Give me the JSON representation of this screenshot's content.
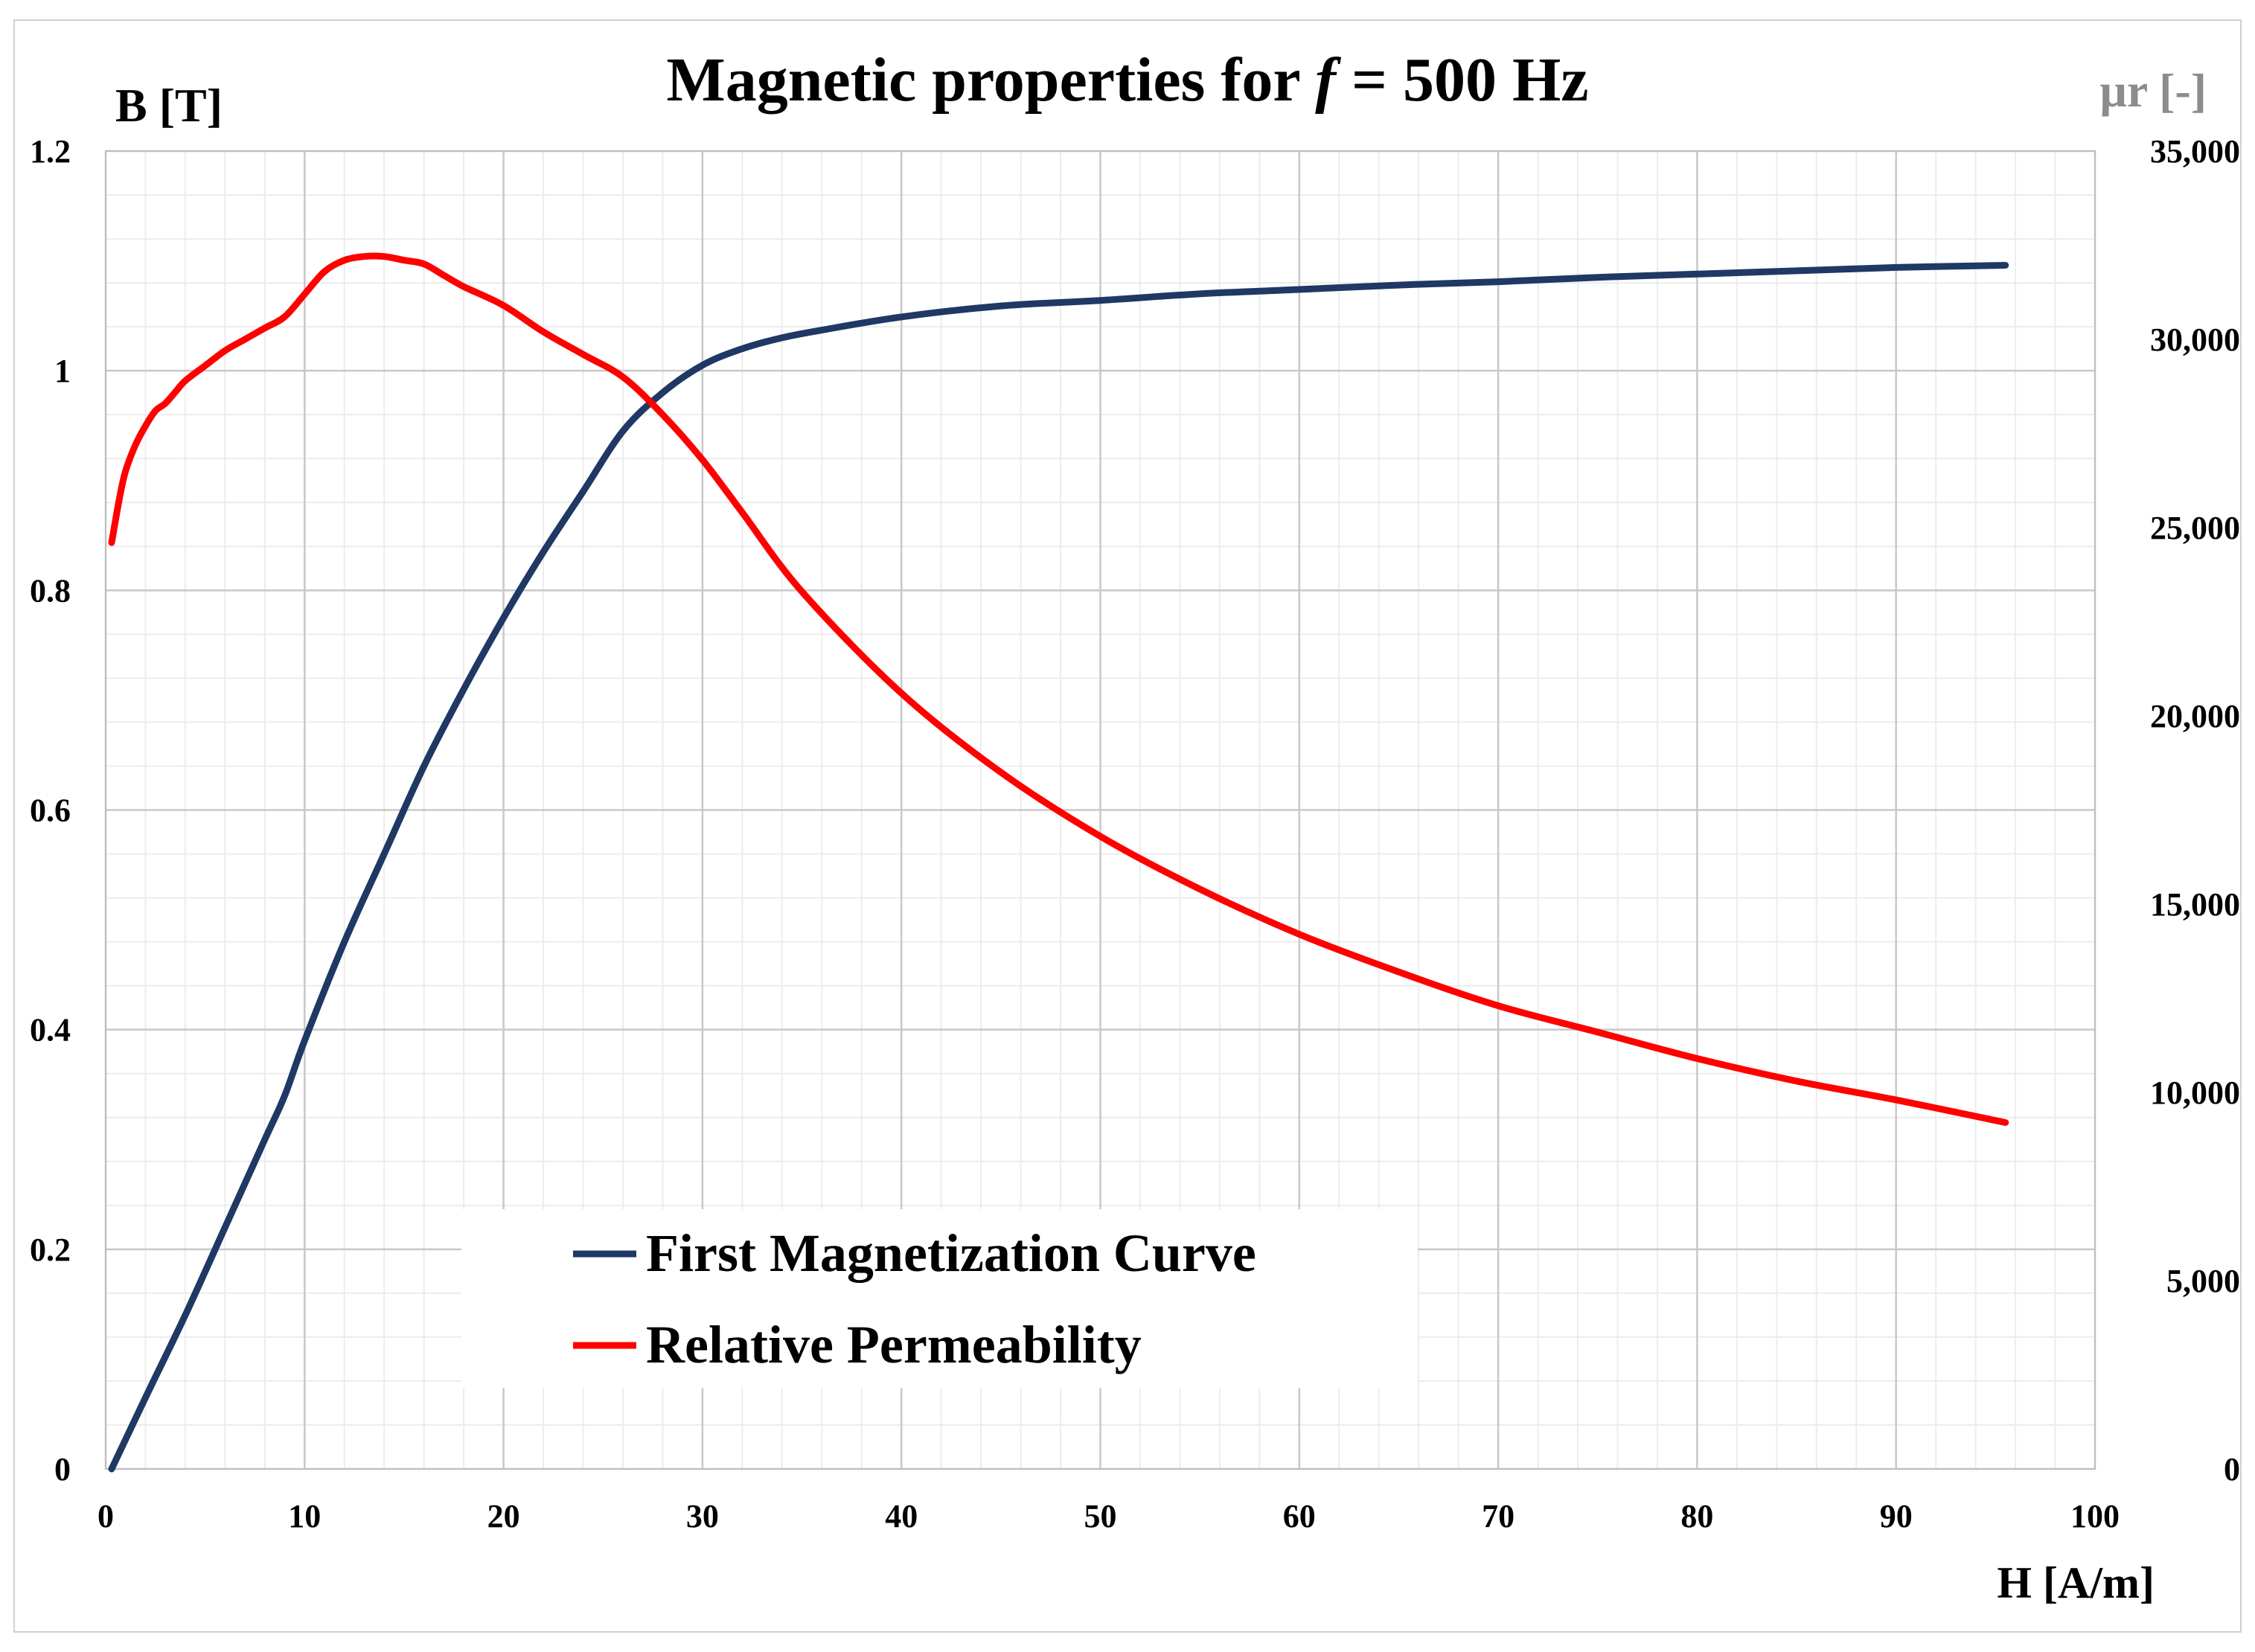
{
  "chart_data": {
    "type": "line",
    "title_prefix": "Magnetic properties for ",
    "title_var": "f",
    "title_suffix": " = 500 Hz",
    "xlabel": "H [A/m]",
    "ylabel_left": "B [T]",
    "ylabel_right": "μr [-]",
    "xlim": [
      0,
      100
    ],
    "ylim_left": [
      0,
      1.2
    ],
    "ylim_right": [
      0,
      35000
    ],
    "x_ticks": [
      "0",
      "10",
      "20",
      "30",
      "40",
      "50",
      "60",
      "70",
      "80",
      "90",
      "100"
    ],
    "y_left_ticks": [
      "0",
      "0.2",
      "0.4",
      "0.6",
      "0.8",
      "1",
      "1.2"
    ],
    "y_right_ticks": [
      "0",
      "5,000",
      "10,000",
      "15,000",
      "20,000",
      "25,000",
      "30,000",
      "35,000"
    ],
    "grid": true,
    "legend_position": "bottom-center",
    "series": [
      {
        "name": "First Magnetization Curve",
        "axis": "left",
        "color": "#1f3864",
        "x": [
          0.3,
          2,
          4,
          6,
          8,
          9,
          10,
          12,
          14,
          16,
          18,
          20,
          22,
          24,
          26,
          28,
          30,
          32,
          34,
          36,
          40,
          45,
          50,
          55,
          60,
          65,
          70,
          75,
          80,
          85,
          90,
          95.5
        ],
        "y": [
          0.0,
          0.065,
          0.14,
          0.22,
          0.3,
          0.34,
          0.39,
          0.48,
          0.56,
          0.64,
          0.71,
          0.775,
          0.835,
          0.89,
          0.945,
          0.98,
          1.005,
          1.02,
          1.03,
          1.037,
          1.049,
          1.059,
          1.064,
          1.07,
          1.074,
          1.078,
          1.081,
          1.085,
          1.088,
          1.091,
          1.094,
          1.096
        ]
      },
      {
        "name": "Relative Permeability",
        "axis": "right",
        "color": "#ff0000",
        "x": [
          0.3,
          0.7,
          1,
          1.5,
          2,
          2.5,
          3,
          3.5,
          4,
          5,
          6,
          7,
          8,
          9,
          10,
          11,
          12,
          13,
          14,
          15,
          16,
          17,
          18,
          20,
          22,
          24,
          26,
          28,
          30,
          32,
          35,
          40,
          45,
          50,
          55,
          60,
          65,
          70,
          75,
          80,
          85,
          90,
          95.5
        ],
        "y": [
          24600,
          25800,
          26500,
          27200,
          27700,
          28100,
          28300,
          28600,
          28900,
          29300,
          29700,
          30000,
          30300,
          30600,
          31200,
          31800,
          32100,
          32200,
          32200,
          32100,
          32000,
          31700,
          31400,
          30900,
          30200,
          29600,
          29000,
          28000,
          26800,
          25400,
          23300,
          20600,
          18500,
          16800,
          15400,
          14200,
          13200,
          12300,
          11600,
          10900,
          10300,
          9800,
          9200
        ]
      }
    ]
  }
}
